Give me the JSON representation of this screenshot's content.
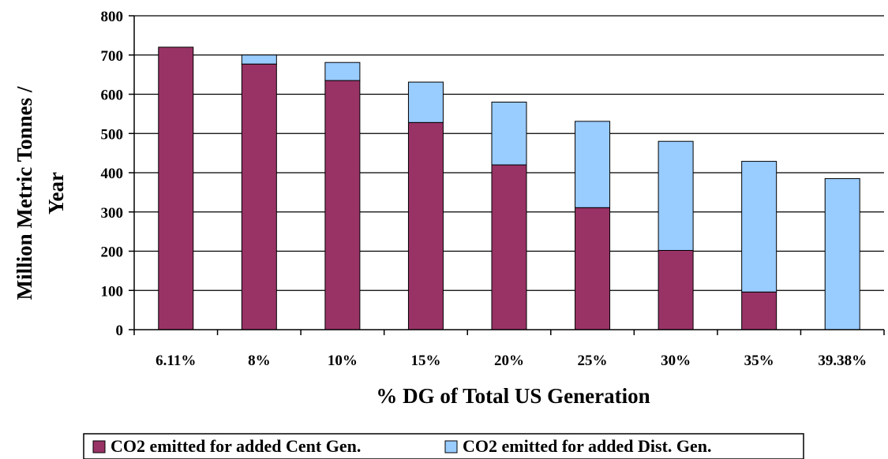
{
  "chart_data": {
    "type": "bar",
    "stacked": true,
    "title": "",
    "xlabel": "% DG of Total US Generation",
    "ylabel_lines": [
      "Million Metric Tonnes /",
      "Year"
    ],
    "categories": [
      "6.11%",
      "8%",
      "10%",
      "15%",
      "20%",
      "25%",
      "30%",
      "35%",
      "39.38%"
    ],
    "ylim": [
      0,
      800
    ],
    "yticks": [
      0,
      100,
      200,
      300,
      400,
      500,
      600,
      700,
      800
    ],
    "grid": true,
    "legend_position": "bottom",
    "series": [
      {
        "name": "CO2 emitted for added Cent Gen.",
        "color": "#993366",
        "values": [
          720,
          677,
          635,
          528,
          420,
          311,
          202,
          96,
          0
        ]
      },
      {
        "name": "CO2 emitted for added Dist. Gen.",
        "color": "#99CCFF",
        "values": [
          0,
          23,
          46,
          103,
          160,
          220,
          278,
          333,
          385
        ]
      }
    ]
  }
}
